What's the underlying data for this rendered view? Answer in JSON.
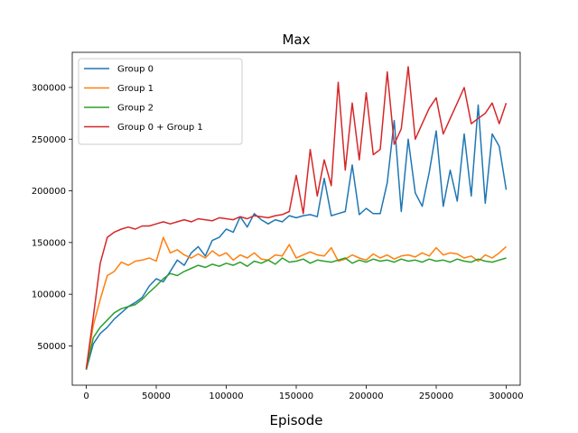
{
  "chart_data": {
    "type": "line",
    "title": "Max",
    "xlabel": "Episode",
    "ylabel": "",
    "xlim": [
      -10000,
      310000
    ],
    "ylim": [
      12000,
      334000
    ],
    "xticks": [
      0,
      50000,
      100000,
      150000,
      200000,
      250000,
      300000
    ],
    "yticks": [
      50000,
      100000,
      150000,
      200000,
      250000,
      300000
    ],
    "xtick_labels": [
      "0",
      "50000",
      "100000",
      "150000",
      "200000",
      "250000",
      "300000"
    ],
    "ytick_labels": [
      "50000",
      "100000",
      "150000",
      "200000",
      "250000",
      "300000"
    ],
    "grid": false,
    "legend_position": "top-left",
    "series": [
      {
        "name": "Group 0",
        "color": "#1f77b4",
        "x": [
          0,
          5000,
          10000,
          15000,
          20000,
          25000,
          30000,
          35000,
          40000,
          45000,
          50000,
          55000,
          60000,
          65000,
          70000,
          75000,
          80000,
          85000,
          90000,
          95000,
          100000,
          105000,
          110000,
          115000,
          120000,
          125000,
          130000,
          135000,
          140000,
          145000,
          150000,
          155000,
          160000,
          165000,
          170000,
          175000,
          180000,
          185000,
          190000,
          195000,
          200000,
          205000,
          210000,
          215000,
          220000,
          225000,
          230000,
          235000,
          240000,
          245000,
          250000,
          255000,
          260000,
          265000,
          270000,
          275000,
          280000,
          285000,
          290000,
          295000,
          300000
        ],
        "values": [
          27000,
          52000,
          62000,
          68000,
          76000,
          82000,
          88000,
          92000,
          97000,
          108000,
          115000,
          112000,
          122000,
          133000,
          128000,
          140000,
          146000,
          137000,
          152000,
          155000,
          163000,
          160000,
          175000,
          165000,
          178000,
          172000,
          168000,
          172000,
          170000,
          176000,
          174000,
          176000,
          177000,
          175000,
          212000,
          176000,
          178000,
          180000,
          225000,
          177000,
          183000,
          178000,
          178000,
          208000,
          268000,
          180000,
          250000,
          198000,
          185000,
          218000,
          258000,
          185000,
          220000,
          190000,
          255000,
          195000,
          283000,
          188000,
          255000,
          243000,
          201000
        ]
      },
      {
        "name": "Group 1",
        "color": "#ff7f0e",
        "x": [
          0,
          5000,
          10000,
          15000,
          20000,
          25000,
          30000,
          35000,
          40000,
          45000,
          50000,
          55000,
          60000,
          65000,
          70000,
          75000,
          80000,
          85000,
          90000,
          95000,
          100000,
          105000,
          110000,
          115000,
          120000,
          125000,
          130000,
          135000,
          140000,
          145000,
          150000,
          155000,
          160000,
          165000,
          170000,
          175000,
          180000,
          185000,
          190000,
          195000,
          200000,
          205000,
          210000,
          215000,
          220000,
          225000,
          230000,
          235000,
          240000,
          245000,
          250000,
          255000,
          260000,
          265000,
          270000,
          275000,
          280000,
          285000,
          290000,
          295000,
          300000
        ],
        "values": [
          28000,
          70000,
          95000,
          118000,
          122000,
          131000,
          128000,
          132000,
          133000,
          135000,
          132000,
          155000,
          140000,
          143000,
          138000,
          135000,
          139000,
          135000,
          142000,
          137000,
          140000,
          133000,
          138000,
          135000,
          140000,
          134000,
          133000,
          138000,
          137000,
          148000,
          135000,
          138000,
          141000,
          138000,
          137000,
          145000,
          132000,
          134000,
          138000,
          135000,
          133000,
          139000,
          135000,
          138000,
          134000,
          137000,
          138000,
          136000,
          140000,
          137000,
          145000,
          138000,
          140000,
          139000,
          135000,
          137000,
          132000,
          138000,
          135000,
          140000,
          146000
        ]
      },
      {
        "name": "Group 2",
        "color": "#2ca02c",
        "x": [
          0,
          5000,
          10000,
          15000,
          20000,
          25000,
          30000,
          35000,
          40000,
          45000,
          50000,
          55000,
          60000,
          65000,
          70000,
          75000,
          80000,
          85000,
          90000,
          95000,
          100000,
          105000,
          110000,
          115000,
          120000,
          125000,
          130000,
          135000,
          140000,
          145000,
          150000,
          155000,
          160000,
          165000,
          170000,
          175000,
          180000,
          185000,
          190000,
          195000,
          200000,
          205000,
          210000,
          215000,
          220000,
          225000,
          230000,
          235000,
          240000,
          245000,
          250000,
          255000,
          260000,
          265000,
          270000,
          275000,
          280000,
          285000,
          290000,
          295000,
          300000
        ],
        "values": [
          27000,
          58000,
          68000,
          75000,
          82000,
          86000,
          88000,
          90000,
          95000,
          102000,
          108000,
          115000,
          120000,
          118000,
          122000,
          125000,
          128000,
          126000,
          129000,
          127000,
          130000,
          128000,
          131000,
          127000,
          132000,
          130000,
          133000,
          129000,
          135000,
          131000,
          132000,
          134000,
          130000,
          133000,
          132000,
          131000,
          133000,
          135000,
          130000,
          133000,
          131000,
          134000,
          132000,
          133000,
          131000,
          134000,
          132000,
          133000,
          131000,
          134000,
          132000,
          133000,
          131000,
          134000,
          132000,
          131000,
          134000,
          132000,
          131000,
          133000,
          135000
        ]
      },
      {
        "name": "Group 0 + Group 1",
        "color": "#d62728",
        "x": [
          0,
          5000,
          10000,
          15000,
          20000,
          25000,
          30000,
          35000,
          40000,
          45000,
          50000,
          55000,
          60000,
          65000,
          70000,
          75000,
          80000,
          85000,
          90000,
          95000,
          100000,
          105000,
          110000,
          115000,
          120000,
          125000,
          130000,
          135000,
          140000,
          145000,
          150000,
          155000,
          160000,
          165000,
          170000,
          175000,
          180000,
          185000,
          190000,
          195000,
          200000,
          205000,
          210000,
          215000,
          220000,
          225000,
          230000,
          235000,
          240000,
          245000,
          250000,
          255000,
          260000,
          265000,
          270000,
          275000,
          280000,
          285000,
          290000,
          295000,
          300000
        ],
        "values": [
          28000,
          78000,
          130000,
          155000,
          160000,
          163000,
          165000,
          163000,
          166000,
          166000,
          168000,
          170000,
          168000,
          170000,
          172000,
          170000,
          173000,
          172000,
          171000,
          174000,
          173000,
          172000,
          175000,
          173000,
          176000,
          175000,
          174000,
          176000,
          177000,
          180000,
          215000,
          178000,
          240000,
          195000,
          230000,
          205000,
          305000,
          220000,
          285000,
          230000,
          295000,
          235000,
          240000,
          315000,
          245000,
          260000,
          320000,
          250000,
          265000,
          280000,
          290000,
          255000,
          270000,
          285000,
          300000,
          265000,
          270000,
          275000,
          285000,
          265000,
          285000
        ]
      }
    ]
  }
}
